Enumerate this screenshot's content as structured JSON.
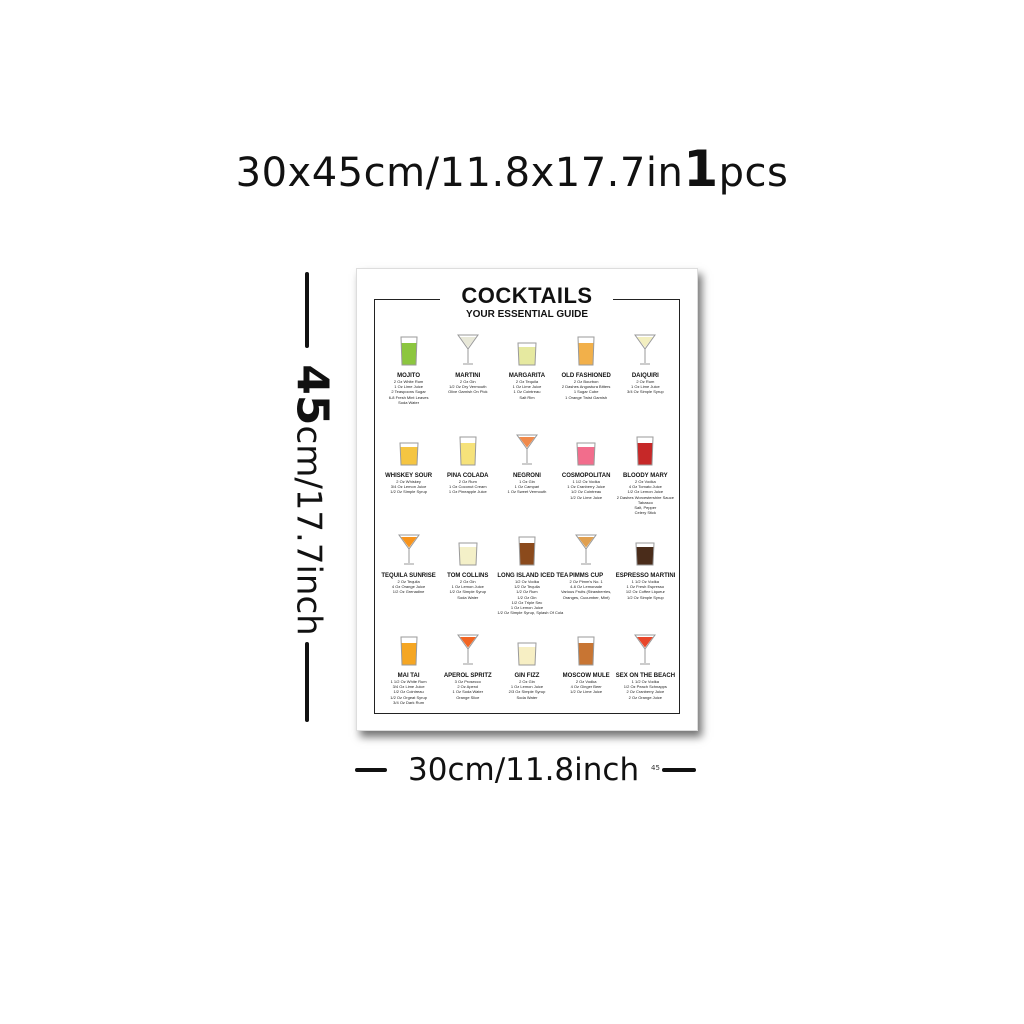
{
  "size_text": "30x45cm/11.8x17.7in",
  "quantity_number": "1",
  "quantity_unit": "pcs",
  "height_label_number": "45",
  "height_label_rest": "cm/17.7inch",
  "width_label": "30cm/11.8inch",
  "width_small_mark": "45",
  "poster": {
    "title": "COCKTAILS",
    "subtitle": "YOUR ESSENTIAL GUIDE",
    "cocktails": [
      {
        "name": "MOJITO",
        "color": "#8cc63f",
        "ingredients": [
          "2 Oz White Rum",
          "1 Oz Lime Juice",
          "2 Teaspoons Sugar",
          "6-8 Fresh Mint Leaves",
          "Soda Water"
        ]
      },
      {
        "name": "MARTINI",
        "color": "#e8e8d8",
        "ingredients": [
          "2 Oz Gin",
          "1/2 Oz Dry Vermouth",
          "Olive Garnish On Pick"
        ]
      },
      {
        "name": "MARGARITA",
        "color": "#e6e9a0",
        "ingredients": [
          "2 Oz Tequila",
          "1 Oz Lime Juice",
          "1 Oz Cointreau",
          "Salt Rim"
        ]
      },
      {
        "name": "OLD FASHIONED",
        "color": "#f2b04a",
        "ingredients": [
          "2 Oz Bourbon",
          "2 Dashes Angostura Bitters",
          "1 Sugar Cube",
          "1 Orange Twist Garnish"
        ]
      },
      {
        "name": "DAIQUIRI",
        "color": "#f3efc0",
        "ingredients": [
          "2 Oz Rum",
          "1 Oz Lime Juice",
          "3/4 Oz Simple Syrup"
        ]
      },
      {
        "name": "WHISKEY SOUR",
        "color": "#f5c542",
        "ingredients": [
          "2 Oz Whiskey",
          "3/4 Oz Lemon Juice",
          "1/2 Oz Simple Syrup"
        ]
      },
      {
        "name": "PINA COLADA",
        "color": "#f6e27a",
        "ingredients": [
          "2 Oz Rum",
          "1 Oz Coconut Cream",
          "1 Oz Pineapple Juice"
        ]
      },
      {
        "name": "NEGRONI",
        "color": "#f08a4b",
        "ingredients": [
          "1 Oz Gin",
          "1 Oz Campari",
          "1 Oz Sweet Vermouth"
        ]
      },
      {
        "name": "COSMOPOLITAN",
        "color": "#f26d8c",
        "ingredients": [
          "1 1/2 Oz Vodka",
          "1 Oz Cranberry Juice",
          "1/2 Oz Cointreau",
          "1/2 Oz Lime Juice"
        ]
      },
      {
        "name": "BLOODY MARY",
        "color": "#c62828",
        "ingredients": [
          "2 Oz Vodka",
          "4 Oz Tomato Juice",
          "1/2 Oz Lemon Juice",
          "2 Dashes Worcestershire Sauce",
          "Tabasco",
          "Salt, Pepper",
          "Celery Stick"
        ]
      },
      {
        "name": "TEQUILA SUNRISE",
        "color": "#f7941d",
        "ingredients": [
          "2 Oz Tequila",
          "4 Oz Orange Juice",
          "1/2 Oz Grenadine"
        ]
      },
      {
        "name": "TOM COLLINS",
        "color": "#f4f0c8",
        "ingredients": [
          "2 Oz Gin",
          "1 Oz Lemon Juice",
          "1/2 Oz Simple Syrup",
          "Soda Water"
        ]
      },
      {
        "name": "LONG ISLAND ICED TEA",
        "color": "#8b4a1c",
        "ingredients": [
          "1/2 Oz Vodka",
          "1/2 Oz Tequila",
          "1/2 Oz Rum",
          "1/2 Oz Gin",
          "1/2 Oz Triple Sec",
          "1 Oz Lemon Juice",
          "1/2 Oz Simple Syrup, Splash Of Cola"
        ]
      },
      {
        "name": "PIMMS CUP",
        "color": "#e0a050",
        "ingredients": [
          "2 Oz Pimm's No. 1",
          "4-6 Oz Lemonade",
          "Various Fruits (Strawberries,",
          "Oranges, Cucumber, Mint)"
        ]
      },
      {
        "name": "ESPRESSO MARTINI",
        "color": "#4a2c1a",
        "ingredients": [
          "1 1/2 Oz Vodka",
          "1 Oz Fresh Espresso",
          "1/2 Oz Coffee Liqueur",
          "1/2 Oz Simple Syrup"
        ]
      },
      {
        "name": "MAI TAI",
        "color": "#f5a623",
        "ingredients": [
          "1 1/2 Oz White Rum",
          "3/4 Oz Lime Juice",
          "1/2 Oz Cointreau",
          "1/2 Oz Orgeat Syrup",
          "3/4 Oz Dark Rum"
        ]
      },
      {
        "name": "APEROL SPRITZ",
        "color": "#f26522",
        "ingredients": [
          "3 Oz Prosecco",
          "2 Oz Aperol",
          "1 Oz Soda Water",
          "Orange Slice"
        ]
      },
      {
        "name": "GIN FIZZ",
        "color": "#f7efc4",
        "ingredients": [
          "2 Oz Gin",
          "1 Oz Lemon Juice",
          "2/3 Oz Simple Syrup",
          "Soda Water"
        ]
      },
      {
        "name": "MOSCOW MULE",
        "color": "#c87533",
        "ingredients": [
          "2 Oz Vodka",
          "4 Oz Ginger Beer",
          "1/2 Oz Lime Juice"
        ]
      },
      {
        "name": "SEX ON THE BEACH",
        "color": "#e8472b",
        "ingredients": [
          "1 1/2 Oz Vodka",
          "1/2 Oz Peach Schnapps",
          "2 Oz Cranberry Juice",
          "2 Oz Orange Juice"
        ]
      }
    ]
  }
}
